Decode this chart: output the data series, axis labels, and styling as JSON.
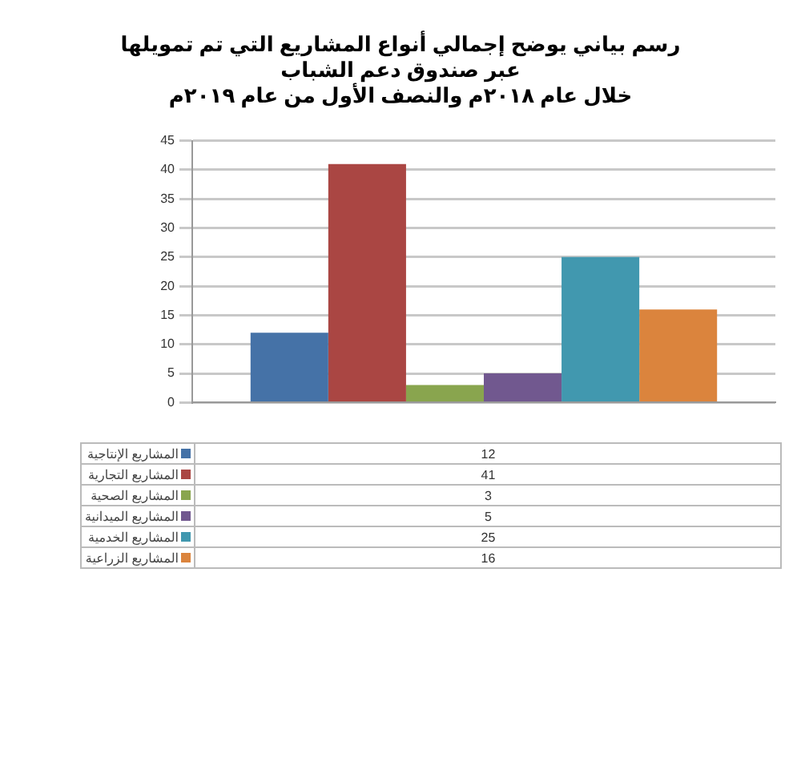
{
  "chart_data": {
    "type": "bar",
    "title": "رسم بياني يوضح إجمالي أنواع المشاريع التي تم تمويلها عبر صندوق دعم الشباب",
    "subtitle": "خلال عام ٢٠١٨م والنصف الأول من عام ٢٠١٩م",
    "categories": [
      null
    ],
    "series": [
      {
        "name": "المشاريع الإنتاجية",
        "color": "#4572a7",
        "values": [
          12
        ]
      },
      {
        "name": "المشاريع التجارية",
        "color": "#aa4643",
        "values": [
          41
        ]
      },
      {
        "name": "المشاريع الصحية",
        "color": "#89a54e",
        "values": [
          3
        ]
      },
      {
        "name": "المشاريع الميدانية",
        "color": "#71588f",
        "values": [
          5
        ]
      },
      {
        "name": "المشاريع الخدمية",
        "color": "#4198af",
        "values": [
          25
        ]
      },
      {
        "name": "المشاريع الزراعية",
        "color": "#db843d",
        "values": [
          16
        ]
      }
    ],
    "ylim": [
      0,
      45
    ],
    "yticks": [
      0,
      5,
      10,
      15,
      20,
      25,
      30,
      35,
      40,
      45
    ],
    "grid": "y",
    "legend": "bottom",
    "annotations": [
      "12",
      "41",
      "3",
      "5",
      "25",
      "16"
    ]
  }
}
